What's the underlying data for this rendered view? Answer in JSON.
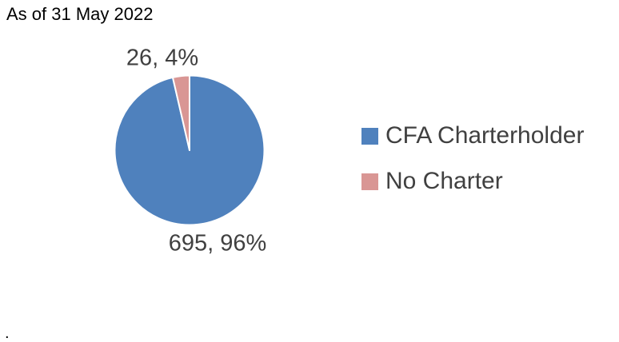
{
  "caption": "As of 31 May 2022",
  "footer": {
    "text": "."
  },
  "colors": {
    "charterholder_blue": "#4F81BD",
    "no_charter_pink": "#D99694",
    "data_label_text": "#404040",
    "caption_text": "#000000",
    "slice_border": "#FFFFFF"
  },
  "chart_data": {
    "type": "pie",
    "title": "",
    "categories": [
      "CFA Charterholder",
      "No Charter"
    ],
    "values": [
      695,
      26
    ],
    "percentages": [
      96,
      4
    ],
    "data_labels": [
      "695, 96%",
      "26, 4%"
    ],
    "slice_colors": [
      "#4F81BD",
      "#D99694"
    ],
    "start_angle_deg": 0,
    "direction": "clockwise",
    "legend_position": "right",
    "grid": false
  },
  "legend": {
    "items": [
      {
        "label": "CFA Charterholder",
        "color": "#4F81BD"
      },
      {
        "label": "No Charter",
        "color": "#D99694"
      }
    ]
  }
}
